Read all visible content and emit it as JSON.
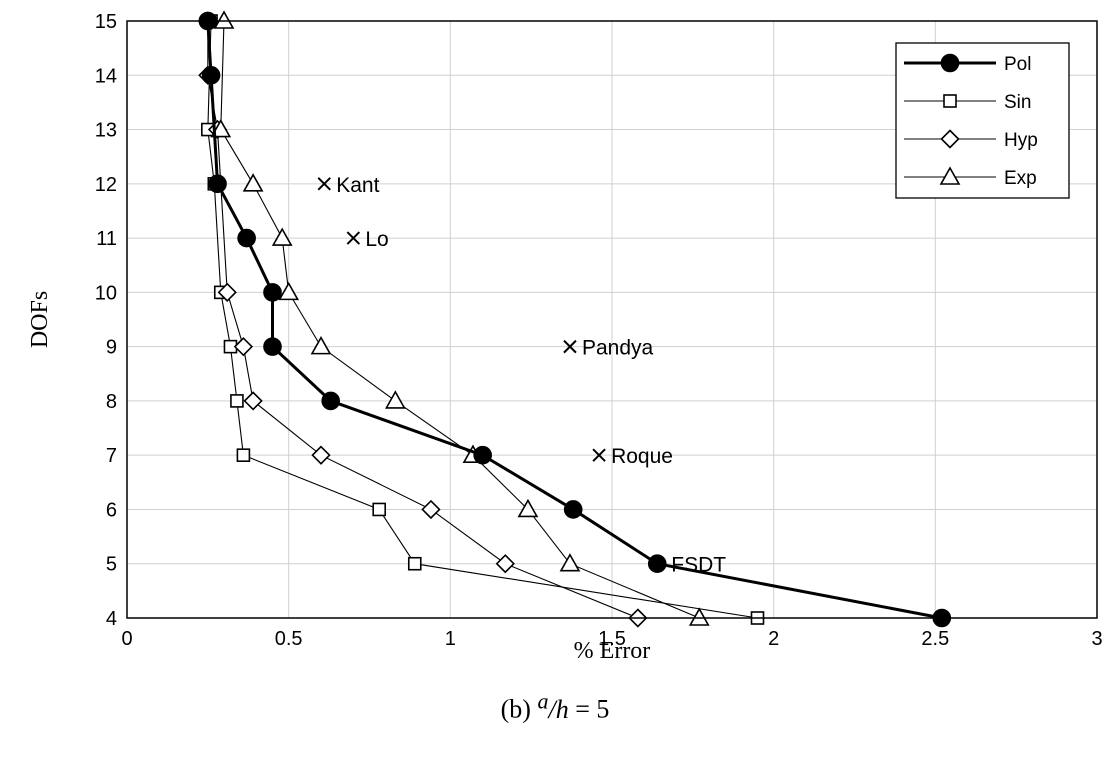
{
  "chart_data": {
    "type": "line",
    "xlabel": "% Error",
    "ylabel": "DOFs",
    "xlim": [
      0,
      3
    ],
    "ylim": [
      4,
      15
    ],
    "xticks": [
      "0",
      "0.5",
      "1",
      "1.5",
      "2",
      "2.5",
      "3"
    ],
    "yticks": [
      "4",
      "5",
      "6",
      "7",
      "8",
      "9",
      "10",
      "11",
      "12",
      "13",
      "14",
      "15"
    ],
    "grid": true,
    "legend_position": "top-right",
    "series": [
      {
        "name": "Pol",
        "marker": "filled-circle",
        "line": "thick",
        "x": [
          0.25,
          0.26,
          0.28,
          0.37,
          0.45,
          0.45,
          0.63,
          1.1,
          1.38,
          1.64,
          2.52
        ],
        "y": [
          15,
          14,
          12,
          11,
          10,
          9,
          8,
          7,
          6,
          5,
          4
        ]
      },
      {
        "name": "Sin",
        "marker": "open-square",
        "line": "thin",
        "x": [
          0.26,
          0.25,
          0.27,
          0.29,
          0.32,
          0.34,
          0.36,
          0.78,
          0.89,
          1.95
        ],
        "y": [
          15,
          13,
          12,
          10,
          9,
          8,
          7,
          6,
          5,
          4
        ]
      },
      {
        "name": "Hyp",
        "marker": "open-diamond",
        "line": "thin",
        "x": [
          0.25,
          0.25,
          0.28,
          0.31,
          0.36,
          0.39,
          0.6,
          0.94,
          1.17,
          1.58
        ],
        "y": [
          15,
          14,
          13,
          10,
          9,
          8,
          7,
          6,
          5,
          4
        ]
      },
      {
        "name": "Exp",
        "marker": "open-triangle",
        "line": "thin",
        "x": [
          0.3,
          0.29,
          0.39,
          0.48,
          0.5,
          0.6,
          0.83,
          1.07,
          1.24,
          1.37,
          1.77
        ],
        "y": [
          15,
          13,
          12,
          11,
          10,
          9,
          8,
          7,
          6,
          5,
          4
        ]
      }
    ],
    "annotations": [
      {
        "label": "Kant",
        "x": 0.61,
        "y": 12,
        "marker": "cross"
      },
      {
        "label": "Lo",
        "x": 0.7,
        "y": 11,
        "marker": "cross"
      },
      {
        "label": "Pandya",
        "x": 1.37,
        "y": 9,
        "marker": "cross"
      },
      {
        "label": "Roque",
        "x": 1.46,
        "y": 7,
        "marker": "cross"
      },
      {
        "label": "FSDT",
        "x": 1.64,
        "y": 5,
        "marker": "none"
      }
    ]
  },
  "caption": {
    "prefix": "(b) ",
    "numerator": "a",
    "slash": "/",
    "denominator": "h",
    "suffix": " = 5"
  }
}
